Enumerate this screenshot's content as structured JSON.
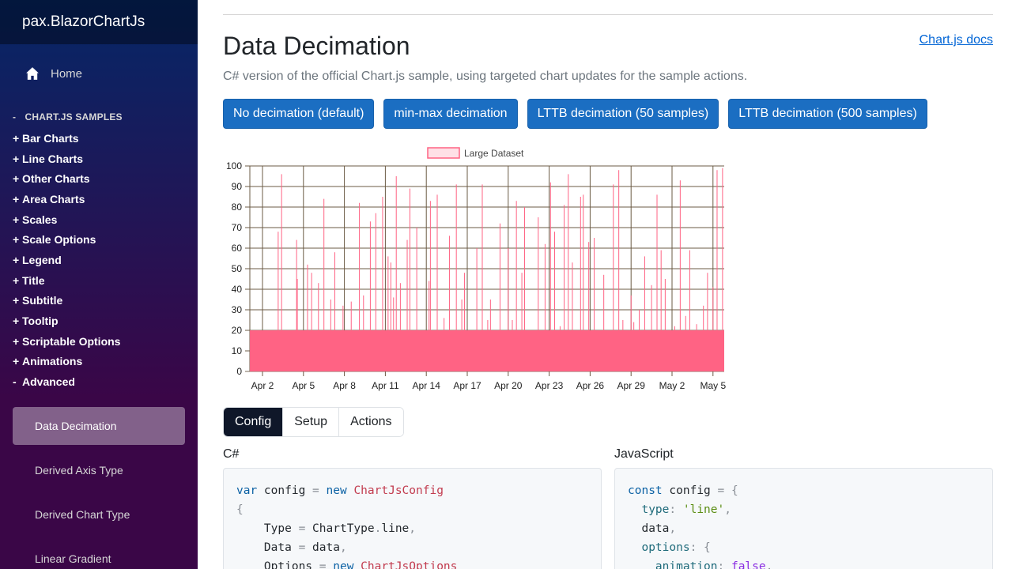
{
  "app": {
    "brand": "pax.BlazorChartJs"
  },
  "sidebar": {
    "home_label": "Home",
    "section_symbol": "-",
    "section_label": "CHART.JS SAMPLES",
    "groups": [
      {
        "sym": "+",
        "label": "Bar Charts"
      },
      {
        "sym": "+",
        "label": "Line Charts"
      },
      {
        "sym": "+",
        "label": "Other Charts"
      },
      {
        "sym": "+",
        "label": "Area Charts"
      },
      {
        "sym": "+",
        "label": "Scales"
      },
      {
        "sym": "+",
        "label": "Scale Options"
      },
      {
        "sym": "+",
        "label": "Legend"
      },
      {
        "sym": "+",
        "label": "Title"
      },
      {
        "sym": "+",
        "label": "Subtitle"
      },
      {
        "sym": "+",
        "label": "Tooltip"
      },
      {
        "sym": "+",
        "label": "Scriptable Options"
      },
      {
        "sym": "+",
        "label": "Animations"
      },
      {
        "sym": "-",
        "label": "Advanced"
      }
    ],
    "sub_items": [
      {
        "label": "Data Decimation",
        "active": true
      },
      {
        "label": "Derived Axis Type",
        "active": false
      },
      {
        "label": "Derived Chart Type",
        "active": false
      },
      {
        "label": "Linear Gradient",
        "active": false
      }
    ]
  },
  "page": {
    "title": "Data Decimation",
    "docs_link": "Chart.js docs",
    "subtitle": "C# version of the official Chart.js sample, using targeted chart updates for the sample actions."
  },
  "actions": [
    "No decimation (default)",
    "min-max decimation",
    "LTTB decimation (50 samples)",
    "LTTB decimation (500 samples)"
  ],
  "tabs": [
    {
      "label": "Config",
      "active": true
    },
    {
      "label": "Setup",
      "active": false
    },
    {
      "label": "Actions",
      "active": false
    }
  ],
  "code": {
    "csharp_label": "C#",
    "js_label": "JavaScript"
  },
  "colors": {
    "accent": "#1b6ec2",
    "series_line": "#ff6384",
    "series_fill": "#ff6384"
  },
  "chart_data": {
    "type": "line",
    "legend": [
      "Large Dataset"
    ],
    "legend_position": "top",
    "x_tick_labels": [
      "Apr 2",
      "Apr 5",
      "Apr 8",
      "Apr 11",
      "Apr 14",
      "Apr 17",
      "Apr 20",
      "Apr 23",
      "Apr 26",
      "Apr 29",
      "May 2",
      "May 5"
    ],
    "y_tick_labels": [
      "0",
      "10",
      "20",
      "30",
      "40",
      "50",
      "60",
      "70",
      "80",
      "90",
      "100"
    ],
    "ylim": [
      0,
      100
    ],
    "grid": true,
    "baseline_band": 20,
    "series": [
      {
        "name": "Large Dataset",
        "x_days": [
          1.15,
          1.4,
          2.5,
          2.55,
          3.3,
          3.6,
          4.1,
          4.5,
          5.0,
          5.3,
          5.9,
          6.5,
          7.1,
          7.4,
          7.9,
          8.3,
          8.8,
          9.2,
          9.4,
          9.6,
          9.8,
          10.1,
          10.6,
          10.8,
          11.3,
          12.2,
          12.3,
          12.8,
          13.3,
          13.7,
          14.2,
          14.6,
          14.8,
          15.7,
          16.1,
          16.5,
          16.7,
          17.4,
          18.0,
          18.3,
          18.6,
          19.0,
          19.2,
          20.2,
          20.7,
          21.1,
          21.4,
          21.8,
          22.1,
          22.4,
          22.7,
          23.3,
          23.5,
          23.9,
          24.3,
          25.0,
          25.7,
          26.1,
          26.4,
          27.0,
          27.2,
          27.6,
          28.0,
          28.5,
          28.9,
          29.2,
          29.5,
          30.2,
          30.6,
          31.0,
          31.3,
          31.8,
          32.3,
          32.6,
          33.0,
          33.3,
          33.7
        ],
        "values": [
          68,
          96,
          64,
          45,
          52,
          48,
          43,
          84,
          35,
          58,
          32,
          34,
          82,
          37,
          73,
          77,
          85,
          56,
          53,
          36,
          95,
          43,
          64,
          89,
          70,
          44,
          83,
          86,
          26,
          66,
          91,
          35,
          48,
          60,
          91,
          25,
          35,
          72,
          60,
          25,
          83,
          48,
          80,
          75,
          62,
          92,
          68,
          22,
          81,
          96,
          53,
          85,
          86,
          63,
          65,
          47,
          91,
          98,
          25,
          37,
          24,
          30,
          56,
          42,
          86,
          59,
          45,
          22,
          93,
          27,
          59,
          23,
          32,
          48,
          41,
          98,
          99
        ]
      }
    ]
  }
}
